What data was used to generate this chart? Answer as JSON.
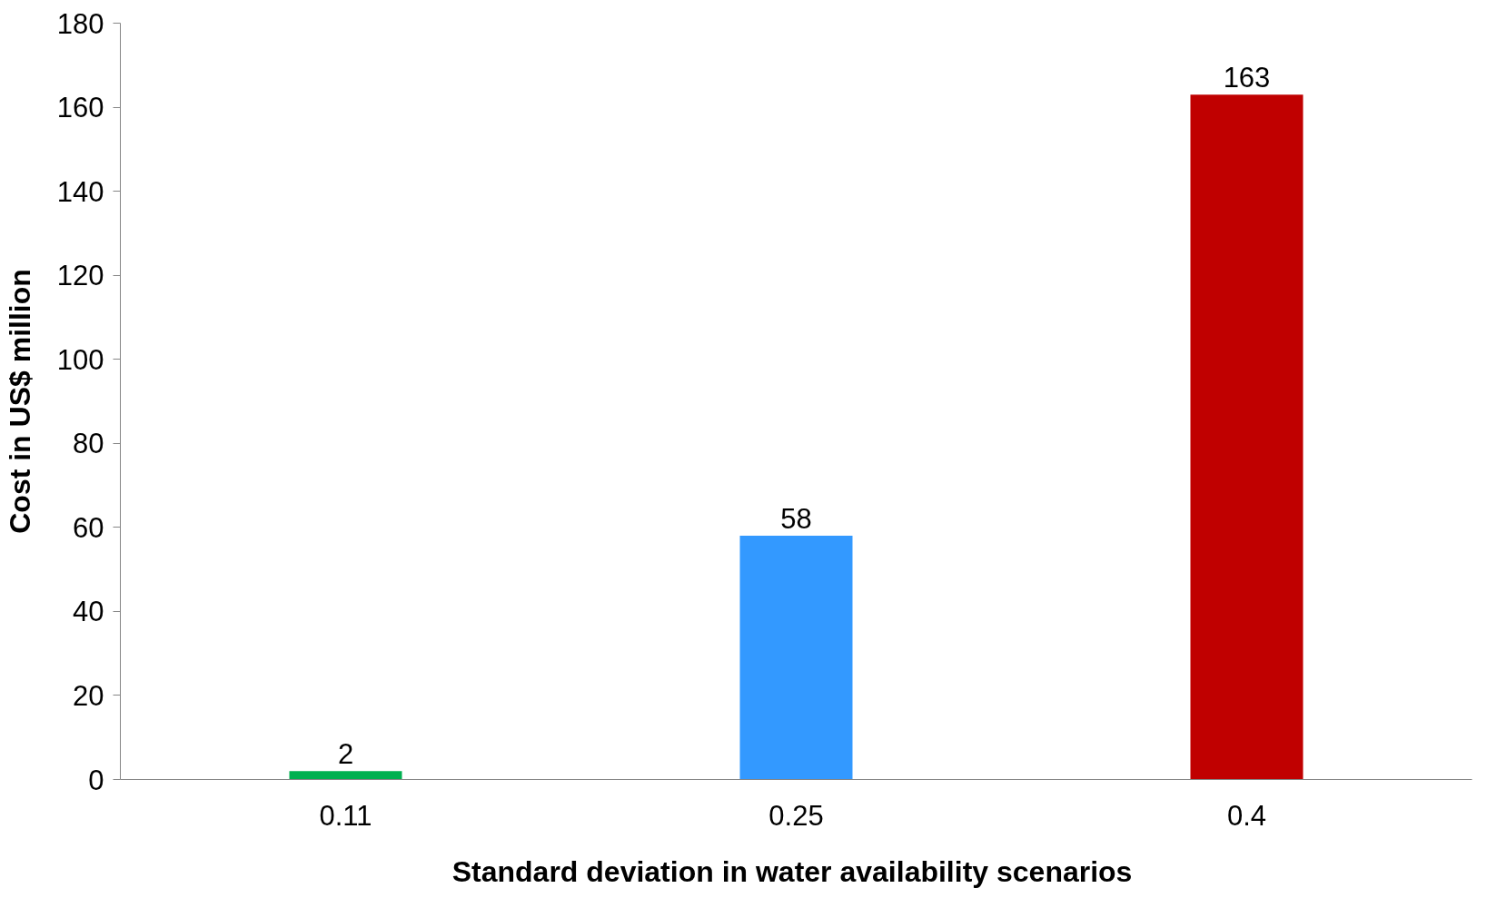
{
  "chart_data": {
    "type": "bar",
    "xlabel": "Standard deviation  in water availability scenarios",
    "ylabel": "Cost in US$ million",
    "categories": [
      "0.11",
      "0.25",
      "0.4"
    ],
    "values": [
      2,
      58,
      163
    ],
    "colors": [
      "#00b050",
      "#3399ff",
      "#c00000"
    ],
    "ylim": [
      0,
      180
    ],
    "yticks": [
      0,
      20,
      40,
      60,
      80,
      100,
      120,
      140,
      160,
      180
    ],
    "data_labels": true,
    "grid": false
  }
}
